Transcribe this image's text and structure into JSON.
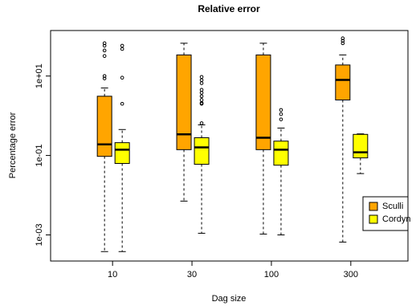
{
  "chart_data": {
    "type": "boxplot",
    "title": "Relative error",
    "x_label": "Dag size",
    "y_label": "Percentage error",
    "categories": [
      "10",
      "30",
      "100",
      "300"
    ],
    "ylog": true,
    "ylim": [
      0.00022,
      140
    ],
    "yticks": [
      {
        "value": 10,
        "label": "1e+01"
      },
      {
        "value": 0.1,
        "label": "1e-01"
      },
      {
        "value": 0.001,
        "label": "1e-03"
      }
    ],
    "legend": "bottom-right",
    "series": [
      {
        "name": "Sculli",
        "color": "#ffa500",
        "whislo": [
          0.00038,
          0.0071,
          0.00105,
          0.00066
        ],
        "q1": [
          0.095,
          0.14,
          0.14,
          2.5
        ],
        "median": [
          0.19,
          0.34,
          0.28,
          8
        ],
        "q3": [
          3.1,
          34,
          34,
          19
        ],
        "whishi": [
          5,
          67,
          67,
          34
        ],
        "outliers": [
          [
            67,
            58,
            44,
            32,
            10,
            8.7
          ],
          [],
          [],
          [
            89,
            77,
            67
          ]
        ]
      },
      {
        "name": "Cordyn",
        "color": "#ffff00",
        "whislo": [
          0.00038,
          0.0011,
          0.001,
          0.035
        ],
        "q1": [
          0.063,
          0.06,
          0.057,
          0.087
        ],
        "median": [
          0.14,
          0.16,
          0.14,
          0.12
        ],
        "q3": [
          0.21,
          0.28,
          0.23,
          0.34
        ],
        "whishi": [
          0.45,
          0.59,
          0.49,
          0.35
        ],
        "outliers": [
          [
            58,
            48,
            9.1,
            2.0
          ],
          [
            9.5,
            7.9,
            6.6,
            4.5,
            3.8,
            3.1,
            2.5,
            2.1,
            2.0,
            0.65
          ],
          [
            1.4,
            1.1,
            0.81
          ],
          []
        ]
      }
    ]
  }
}
